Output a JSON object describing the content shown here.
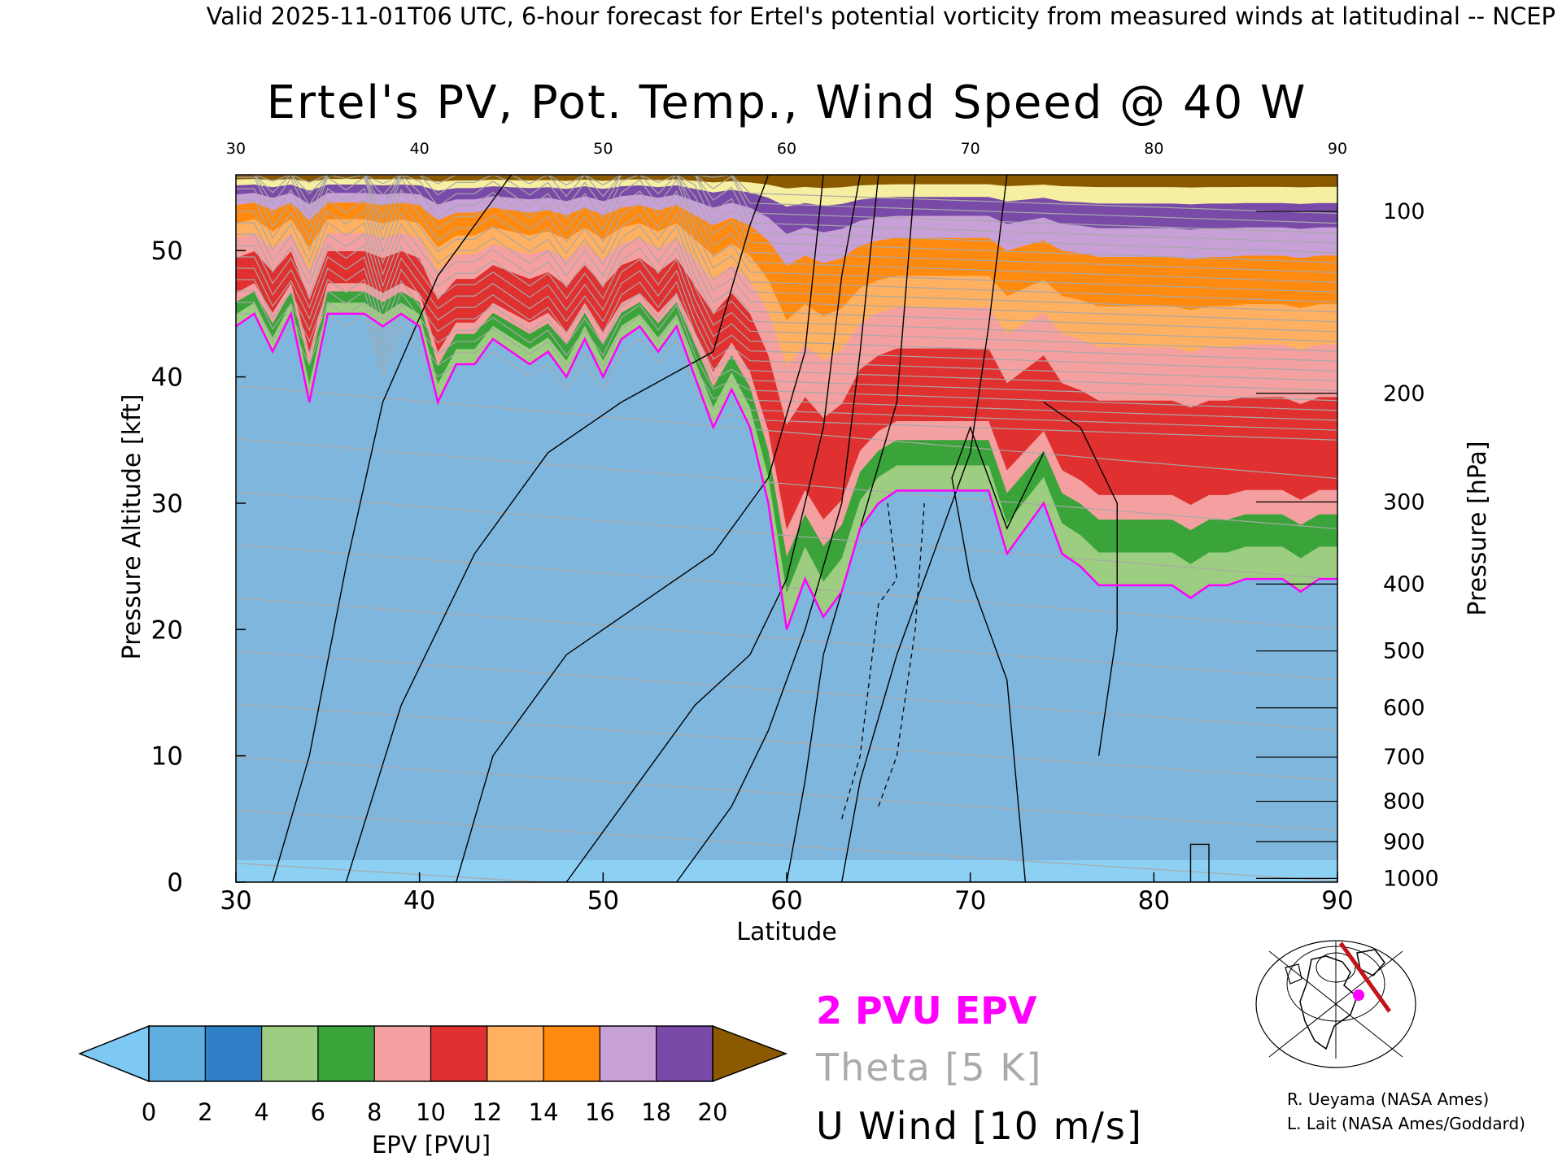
{
  "header": {
    "valid_line": "Valid 2025-11-01T06 UTC, 6-hour forecast for Ertel's potential vorticity from measured winds at latitudinal -- NCEP"
  },
  "chart_data": {
    "type": "heatmap",
    "title": "Ertel's PV, Pot. Temp., Wind Speed @ 40 W",
    "xlabel": "Latitude",
    "ylabel": "Pressure Altitude [kft]",
    "y2label": "Pressure [hPa]",
    "xlim": [
      30,
      90
    ],
    "ylim": [
      0,
      56
    ],
    "x_ticks": [
      30,
      40,
      50,
      60,
      70,
      80,
      90
    ],
    "x_tick_labels": [
      "30",
      "40",
      "50",
      "60",
      "70",
      "80",
      "90"
    ],
    "top_tick_labels": [
      "30",
      "40",
      "50",
      "60",
      "70",
      "80",
      "90"
    ],
    "y_ticks": [
      0,
      10,
      20,
      30,
      40,
      50
    ],
    "y_tick_labels": [
      "0",
      "10",
      "20",
      "30",
      "40",
      "50"
    ],
    "pressure_ticks": [
      {
        "hpa": 100,
        "kft": 53.1,
        "label": "100"
      },
      {
        "hpa": 200,
        "kft": 38.7,
        "label": "200"
      },
      {
        "hpa": 300,
        "kft": 30.1,
        "label": "300"
      },
      {
        "hpa": 400,
        "kft": 23.6,
        "label": "400"
      },
      {
        "hpa": 500,
        "kft": 18.3,
        "label": "500"
      },
      {
        "hpa": 600,
        "kft": 13.8,
        "label": "600"
      },
      {
        "hpa": 700,
        "kft": 9.9,
        "label": "700"
      },
      {
        "hpa": 800,
        "kft": 6.4,
        "label": "800"
      },
      {
        "hpa": 900,
        "kft": 3.2,
        "label": "900"
      },
      {
        "hpa": 1000,
        "kft": 0.3,
        "label": "1000"
      }
    ],
    "pv_2pvu_boundary": {
      "lat": [
        30,
        31,
        32,
        33,
        34,
        35,
        36,
        37,
        38,
        39,
        40,
        41,
        42,
        43,
        44,
        45,
        46,
        47,
        48,
        49,
        50,
        51,
        52,
        53,
        54,
        55,
        56,
        57,
        58,
        59,
        60,
        61,
        62,
        63,
        64,
        65,
        66,
        67,
        68,
        69,
        70,
        71,
        72,
        73,
        74,
        75,
        76,
        77,
        78,
        79,
        80,
        81,
        82,
        83,
        84,
        85,
        86,
        87,
        88,
        89,
        90
      ],
      "kft": [
        44,
        45,
        42,
        45,
        38,
        45,
        45,
        45,
        44,
        45,
        44,
        38,
        41,
        41,
        43,
        42,
        41,
        42,
        40,
        43,
        40,
        43,
        44,
        42,
        44,
        40,
        36,
        39,
        36,
        30,
        20,
        24,
        21,
        23,
        28,
        30,
        31,
        31,
        31,
        31,
        31,
        31,
        26,
        28,
        30,
        26,
        25,
        23.5,
        23.5,
        23.5,
        23.5,
        23.5,
        22.5,
        23.5,
        23.5,
        24,
        24,
        24,
        23,
        24,
        24
      ]
    },
    "tropopause_kft": [
      53,
      53,
      50,
      52,
      49,
      53,
      52,
      53,
      48,
      52,
      50,
      48,
      49,
      49,
      50,
      49,
      48,
      49,
      47,
      49,
      47,
      50,
      51,
      49,
      51,
      47,
      44,
      45,
      41,
      36,
      31,
      33,
      32,
      33,
      34,
      36,
      37,
      37,
      37,
      37,
      37,
      37,
      33,
      35,
      36,
      34,
      32,
      31.5,
      31.5,
      31.5,
      31.5,
      31.5,
      30.5,
      31.5,
      31.5,
      32,
      32,
      32,
      31,
      32,
      32
    ],
    "colorbar": {
      "label": "EPV [PVU]",
      "ticks": [
        "0",
        "2",
        "4",
        "6",
        "8",
        "10",
        "12",
        "14",
        "16",
        "18",
        "20"
      ],
      "colors": [
        "#60aee0",
        "#2f7fc6",
        "#9ccd80",
        "#3aa43a",
        "#f4a0a0",
        "#e03030",
        "#ffb060",
        "#ff8a10",
        "#c8a0d8",
        "#7a4aa8",
        "#f6eea0"
      ],
      "under_color": "#7ec8f4",
      "over_color": "#8b5a00"
    },
    "legend": {
      "pv_line": "2 PVU EPV",
      "pv_color": "#ff00ff",
      "theta_line": "Theta [5 K]",
      "theta_color": "#aaaaaa",
      "wind_line": "U Wind [10 m/s]",
      "wind_color": "#000000"
    }
  },
  "credits": {
    "line1": "R. Ueyama (NASA Ames)",
    "line2": "L. Lait (NASA Ames/Goddard)"
  }
}
